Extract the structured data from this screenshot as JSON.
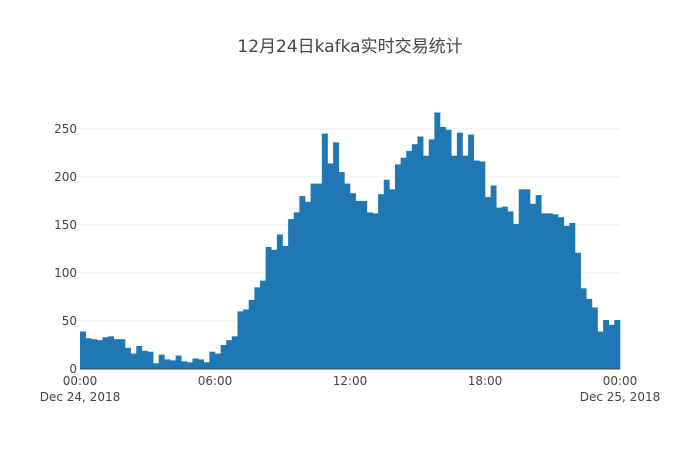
{
  "chart_data": {
    "type": "bar",
    "title": "12月24日kafka实时交易统计",
    "xlabel": "",
    "ylabel": "",
    "ylim": [
      0,
      280
    ],
    "yticks": [
      0,
      50,
      100,
      150,
      200,
      250
    ],
    "xticks": [
      {
        "hour": 0,
        "label": "00:00",
        "sublabel": "Dec 24, 2018"
      },
      {
        "hour": 6,
        "label": "06:00",
        "sublabel": ""
      },
      {
        "hour": 12,
        "label": "12:00",
        "sublabel": ""
      },
      {
        "hour": 18,
        "label": "18:00",
        "sublabel": ""
      },
      {
        "hour": 24,
        "label": "00:00",
        "sublabel": "Dec 25, 2018"
      }
    ],
    "bin_minutes": 15,
    "grid": true,
    "color": "#1f77b4",
    "values": [
      39,
      32,
      31,
      30,
      33,
      34,
      31,
      31,
      22,
      16,
      24,
      19,
      18,
      6,
      15,
      10,
      9,
      14,
      8,
      7,
      11,
      10,
      7,
      18,
      16,
      25,
      30,
      34,
      60,
      62,
      72,
      85,
      92,
      127,
      124,
      140,
      128,
      156,
      163,
      180,
      174,
      193,
      193,
      245,
      214,
      236,
      205,
      193,
      183,
      175,
      175,
      163,
      162,
      182,
      197,
      187,
      213,
      220,
      227,
      234,
      242,
      222,
      239,
      267,
      252,
      249,
      222,
      246,
      222,
      244,
      217,
      216,
      179,
      191,
      168,
      169,
      164,
      151,
      187,
      187,
      172,
      181,
      162,
      162,
      161,
      158,
      149,
      152,
      121,
      84,
      73,
      64,
      39,
      51,
      46,
      51
    ]
  }
}
